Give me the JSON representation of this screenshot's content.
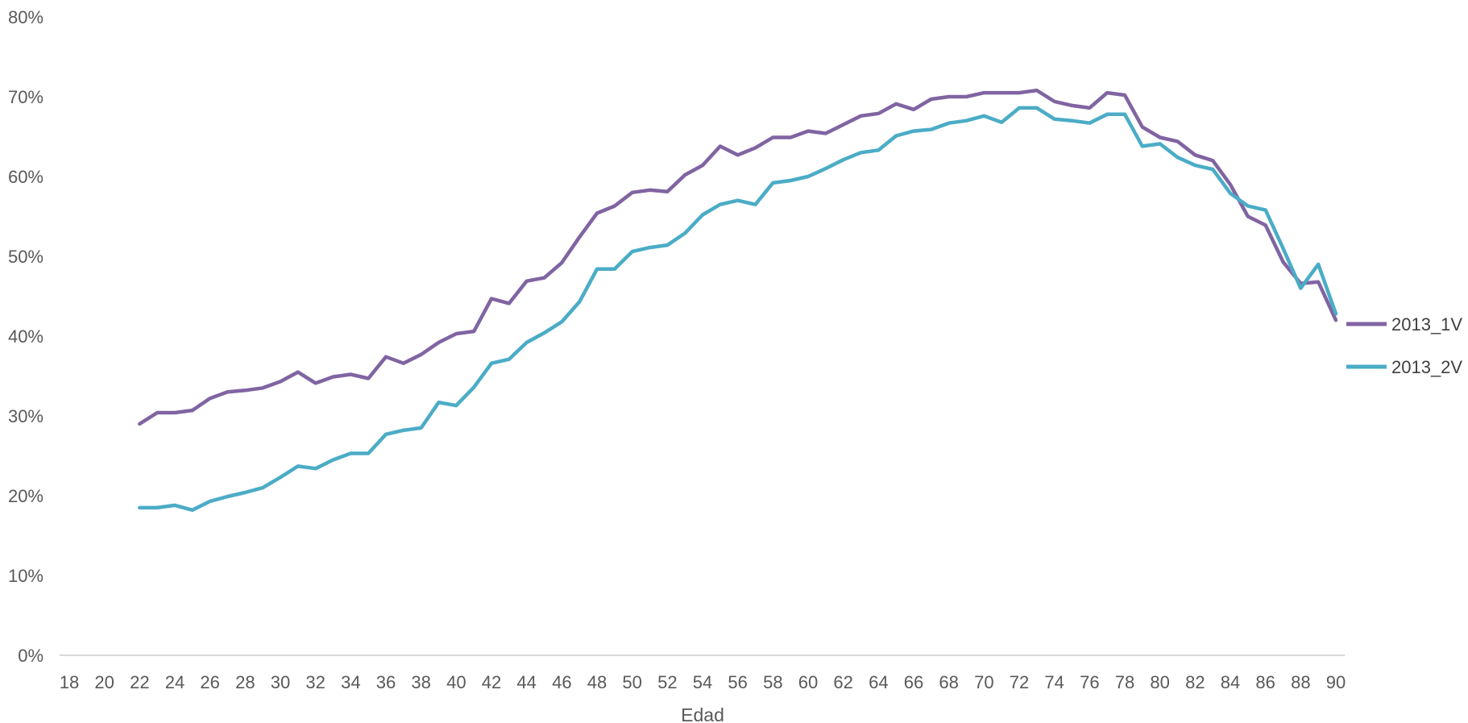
{
  "colors": {
    "series_2013_1V": "#8064a2",
    "series_2013_2V": "#4bacc6",
    "axis": "#d9d9d9",
    "text": "#595959"
  },
  "chart_data": {
    "type": "line",
    "xlabel": "Edad",
    "ylabel": "",
    "xlim": [
      18,
      90
    ],
    "ylim": [
      0,
      0.8
    ],
    "x_tick_labels": [
      "18",
      "20",
      "22",
      "24",
      "26",
      "28",
      "30",
      "32",
      "34",
      "36",
      "38",
      "40",
      "42",
      "44",
      "46",
      "48",
      "50",
      "52",
      "54",
      "56",
      "58",
      "60",
      "62",
      "64",
      "66",
      "68",
      "70",
      "72",
      "74",
      "76",
      "78",
      "80",
      "82",
      "84",
      "86",
      "88",
      "90"
    ],
    "y_tick_labels": [
      "0%",
      "10%",
      "20%",
      "30%",
      "40%",
      "50%",
      "60%",
      "70%",
      "80%"
    ],
    "y_ticks": [
      0,
      0.1,
      0.2,
      0.3,
      0.4,
      0.5,
      0.6,
      0.7,
      0.8
    ],
    "grid": false,
    "legend_position": "right",
    "x": [
      22,
      23,
      24,
      25,
      26,
      27,
      28,
      29,
      30,
      31,
      32,
      33,
      34,
      35,
      36,
      37,
      38,
      39,
      40,
      41,
      42,
      43,
      44,
      45,
      46,
      47,
      48,
      49,
      50,
      51,
      52,
      53,
      54,
      55,
      56,
      57,
      58,
      59,
      60,
      61,
      62,
      63,
      64,
      65,
      66,
      67,
      68,
      69,
      70,
      71,
      72,
      73,
      74,
      75,
      76,
      77,
      78,
      79,
      80,
      81,
      82,
      83,
      84,
      85,
      86,
      87,
      88,
      89,
      90
    ],
    "series": [
      {
        "name": "2013_1V",
        "values": [
          0.29,
          0.304,
          0.304,
          0.307,
          0.322,
          0.33,
          0.332,
          0.335,
          0.343,
          0.355,
          0.341,
          0.349,
          0.352,
          0.347,
          0.374,
          0.366,
          0.377,
          0.392,
          0.403,
          0.406,
          0.447,
          0.441,
          0.469,
          0.473,
          0.492,
          0.524,
          0.554,
          0.563,
          0.58,
          0.583,
          0.581,
          0.602,
          0.614,
          0.638,
          0.627,
          0.636,
          0.649,
          0.649,
          0.657,
          0.654,
          0.665,
          0.676,
          0.679,
          0.691,
          0.684,
          0.697,
          0.7,
          0.7,
          0.705,
          0.705,
          0.705,
          0.708,
          0.694,
          0.689,
          0.686,
          0.705,
          0.702,
          0.662,
          0.649,
          0.644,
          0.627,
          0.62,
          0.59,
          0.55,
          0.539,
          0.493,
          0.466,
          0.468,
          0.42
        ]
      },
      {
        "name": "2013_2V",
        "values": [
          0.185,
          0.185,
          0.188,
          0.182,
          0.193,
          0.199,
          0.204,
          0.21,
          0.223,
          0.237,
          0.234,
          0.245,
          0.253,
          0.253,
          0.277,
          0.282,
          0.285,
          0.317,
          0.313,
          0.336,
          0.366,
          0.371,
          0.392,
          0.404,
          0.418,
          0.443,
          0.484,
          0.484,
          0.506,
          0.511,
          0.514,
          0.529,
          0.552,
          0.565,
          0.57,
          0.565,
          0.592,
          0.595,
          0.6,
          0.61,
          0.621,
          0.63,
          0.633,
          0.651,
          0.657,
          0.659,
          0.667,
          0.67,
          0.676,
          0.668,
          0.686,
          0.686,
          0.672,
          0.67,
          0.667,
          0.678,
          0.678,
          0.638,
          0.641,
          0.624,
          0.614,
          0.609,
          0.579,
          0.563,
          0.558,
          0.51,
          0.46,
          0.49,
          0.428
        ]
      }
    ]
  }
}
